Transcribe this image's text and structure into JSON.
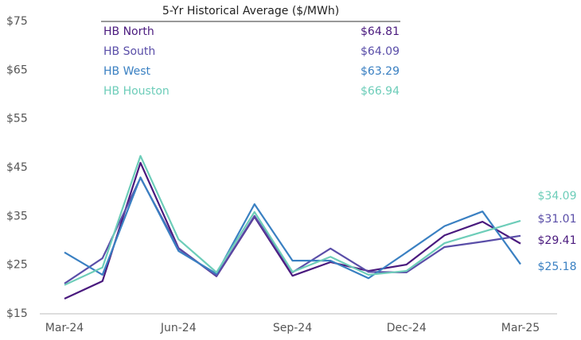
{
  "chart_data": {
    "type": "line",
    "categories": [
      "Mar-24",
      null,
      null,
      "Jun-24",
      null,
      null,
      "Sep-24",
      null,
      null,
      "Dec-24",
      null,
      null,
      "Mar-25"
    ],
    "ylim": [
      15,
      75
    ],
    "yticks": [
      {
        "value": 15,
        "label": "$15"
      },
      {
        "value": 25,
        "label": "$25"
      },
      {
        "value": 35,
        "label": "$35"
      },
      {
        "value": 45,
        "label": "$45"
      },
      {
        "value": 55,
        "label": "$55"
      },
      {
        "value": 65,
        "label": "$65"
      },
      {
        "value": 75,
        "label": "$75"
      }
    ],
    "grid": false,
    "series": [
      {
        "name": "HB North",
        "color": "#4a1a7e",
        "values": [
          18.1,
          21.7,
          46.0,
          28.5,
          22.7,
          34.9,
          22.8,
          25.6,
          23.8,
          25.1,
          31.1,
          33.9,
          29.41
        ],
        "value_labels": [
          null,
          null,
          null,
          null,
          null,
          null,
          null,
          null,
          null,
          null,
          null,
          null,
          "$29.41"
        ]
      },
      {
        "name": "HB South",
        "color": "#5a4ea8",
        "values": [
          21.2,
          26.4,
          42.9,
          28.4,
          22.8,
          35.1,
          23.5,
          28.4,
          23.6,
          23.5,
          28.7,
          29.8,
          31.01
        ],
        "value_labels": [
          null,
          null,
          null,
          null,
          null,
          null,
          null,
          null,
          null,
          null,
          null,
          null,
          "$31.01"
        ]
      },
      {
        "name": "HB West",
        "color": "#3a80c2",
        "values": [
          27.6,
          23.0,
          43.0,
          27.9,
          23.2,
          37.5,
          25.9,
          25.9,
          22.3,
          27.6,
          33.0,
          36.0,
          25.18
        ],
        "value_labels": [
          null,
          null,
          null,
          null,
          null,
          null,
          null,
          null,
          null,
          null,
          null,
          null,
          "$25.18"
        ]
      },
      {
        "name": "HB Houston",
        "color": "#6dcdb9",
        "values": [
          20.9,
          24.5,
          47.4,
          30.3,
          23.5,
          35.9,
          23.6,
          26.7,
          23.0,
          23.8,
          29.5,
          31.8,
          34.09
        ],
        "value_labels": [
          null,
          null,
          null,
          null,
          null,
          null,
          null,
          null,
          null,
          null,
          null,
          null,
          "$34.09"
        ]
      }
    ],
    "historical_average": {
      "title": "5-Yr Historical Average ($/MWh)",
      "values": [
        64.81,
        64.09,
        63.29,
        66.94
      ],
      "value_labels": [
        "$64.81",
        "$64.09",
        "$63.29",
        "$66.94"
      ]
    }
  }
}
